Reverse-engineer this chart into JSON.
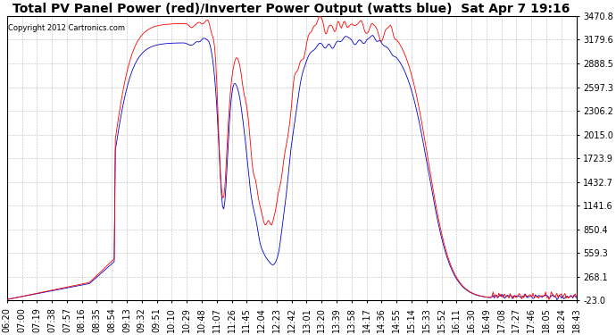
{
  "title": "Total PV Panel Power (red)/Inverter Power Output (watts blue)  Sat Apr 7 19:16",
  "copyright": "Copyright 2012 Cartronics.com",
  "yticks": [
    3470.8,
    3179.6,
    2888.5,
    2597.3,
    2306.2,
    2015.0,
    1723.9,
    1432.7,
    1141.6,
    850.4,
    559.3,
    268.1,
    -23.0
  ],
  "ylim": [
    -23.0,
    3470.8
  ],
  "xtick_labels": [
    "06:20",
    "07:00",
    "07:19",
    "07:38",
    "07:57",
    "08:16",
    "08:35",
    "08:54",
    "09:13",
    "09:32",
    "09:51",
    "10:10",
    "10:29",
    "10:48",
    "11:07",
    "11:26",
    "11:45",
    "12:04",
    "12:23",
    "12:42",
    "13:01",
    "13:20",
    "13:39",
    "13:58",
    "14:17",
    "14:36",
    "14:55",
    "15:14",
    "15:33",
    "15:52",
    "16:11",
    "16:30",
    "16:49",
    "17:08",
    "17:27",
    "17:46",
    "18:05",
    "18:24",
    "18:43"
  ],
  "n_ticks": 39,
  "background_color": "#ffffff",
  "plot_bg_color": "#ffffff",
  "grid_color": "#bbbbbb",
  "red_color": "#ff0000",
  "blue_color": "#0000cc",
  "title_fontsize": 10,
  "tick_fontsize": 7
}
